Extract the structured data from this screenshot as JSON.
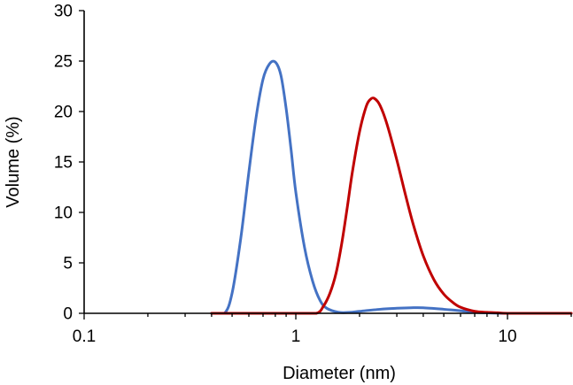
{
  "chart_data": {
    "type": "line",
    "title": "",
    "xlabel": "Diameter (nm)",
    "ylabel": "Volume (%)",
    "x_scale": "log",
    "xlim": [
      0.1,
      20
    ],
    "ylim": [
      0,
      30
    ],
    "x_ticks": [
      0.1,
      1,
      10
    ],
    "x_tick_labels": [
      "0.1",
      "1",
      "10"
    ],
    "y_ticks": [
      0,
      5,
      10,
      15,
      20,
      25,
      30
    ],
    "y_tick_labels": [
      "0",
      "5",
      "10",
      "15",
      "20",
      "25",
      "30"
    ],
    "grid": false,
    "legend": "none",
    "series": [
      {
        "color": "#4472C4",
        "x": [
          0.4,
          0.46,
          0.5,
          0.55,
          0.6,
          0.65,
          0.7,
          0.75,
          0.8,
          0.85,
          0.9,
          0.95,
          1.0,
          1.1,
          1.2,
          1.3,
          1.4,
          1.6,
          1.8,
          2.0,
          2.5,
          3.0,
          3.5,
          4.0,
          5.0,
          6.0,
          7.0,
          8.0,
          10.0,
          20.0
        ],
        "y": [
          0,
          0,
          2.0,
          7.5,
          14.0,
          19.5,
          23.2,
          24.7,
          24.9,
          23.6,
          20.3,
          16.2,
          12.0,
          6.5,
          3.2,
          1.3,
          0.5,
          0.1,
          0.1,
          0.2,
          0.4,
          0.5,
          0.55,
          0.55,
          0.4,
          0.25,
          0.1,
          0.05,
          0,
          0
        ]
      },
      {
        "color": "#C00000",
        "x": [
          0.4,
          1.0,
          1.25,
          1.35,
          1.45,
          1.55,
          1.65,
          1.75,
          1.85,
          2.0,
          2.15,
          2.25,
          2.35,
          2.5,
          2.7,
          3.0,
          3.3,
          3.6,
          4.0,
          4.5,
          5.0,
          5.5,
          6.0,
          7.0,
          8.0,
          9.0,
          10.0,
          15.0,
          20.0
        ],
        "y": [
          0,
          0,
          0,
          0.7,
          2.0,
          4.0,
          7.0,
          10.5,
          14.0,
          18.0,
          20.5,
          21.2,
          21.3,
          20.6,
          18.7,
          15.2,
          11.7,
          8.7,
          5.7,
          3.3,
          1.9,
          1.1,
          0.6,
          0.2,
          0.1,
          0.05,
          0,
          0,
          0
        ]
      }
    ]
  }
}
